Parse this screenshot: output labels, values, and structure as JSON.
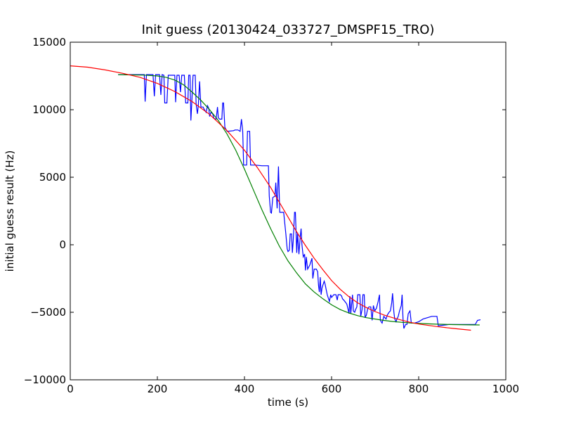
{
  "chart_data": {
    "type": "line",
    "title": "Init guess (20130424_033727_DMSPF15_TRO)",
    "xlabel": "time (s)",
    "ylabel": "initial guess result (Hz)",
    "xlim": [
      0,
      1000
    ],
    "ylim": [
      -10000,
      15000
    ],
    "x_ticks": [
      0,
      200,
      400,
      600,
      800,
      1000
    ],
    "y_ticks": [
      -10000,
      -5000,
      0,
      5000,
      10000,
      15000
    ],
    "grid": false,
    "legend": "none",
    "series": [
      {
        "color": "#0000ff",
        "points": [
          [
            110,
            12600
          ],
          [
            170,
            12600
          ],
          [
            172,
            10600
          ],
          [
            175,
            12600
          ],
          [
            190,
            12600
          ],
          [
            193,
            11000
          ],
          [
            196,
            12600
          ],
          [
            205,
            12600
          ],
          [
            208,
            11100
          ],
          [
            211,
            12600
          ],
          [
            215,
            12550
          ],
          [
            217,
            10500
          ],
          [
            222,
            10500
          ],
          [
            225,
            12550
          ],
          [
            240,
            12550
          ],
          [
            242,
            10550
          ],
          [
            245,
            12550
          ],
          [
            250,
            12550
          ],
          [
            253,
            11300
          ],
          [
            256,
            12550
          ],
          [
            262,
            12550
          ],
          [
            265,
            10500
          ],
          [
            270,
            10500
          ],
          [
            272,
            12550
          ],
          [
            275,
            12550
          ],
          [
            277,
            9200
          ],
          [
            279,
            10500
          ],
          [
            282,
            12550
          ],
          [
            287,
            12550
          ],
          [
            289,
            10400
          ],
          [
            292,
            9700
          ],
          [
            294,
            10300
          ],
          [
            297,
            12100
          ],
          [
            300,
            10200
          ],
          [
            305,
            10200
          ],
          [
            308,
            10000
          ],
          [
            312,
            9800
          ],
          [
            315,
            10300
          ],
          [
            318,
            10100
          ],
          [
            320,
            9500
          ],
          [
            323,
            9800
          ],
          [
            327,
            9700
          ],
          [
            330,
            9350
          ],
          [
            335,
            9300
          ],
          [
            338,
            10200
          ],
          [
            340,
            9400
          ],
          [
            343,
            9300
          ],
          [
            348,
            9300
          ],
          [
            350,
            10500
          ],
          [
            352,
            10500
          ],
          [
            355,
            8700
          ],
          [
            360,
            8400
          ],
          [
            375,
            8450
          ],
          [
            378,
            8500
          ],
          [
            385,
            8500
          ],
          [
            390,
            8400
          ],
          [
            393,
            9300
          ],
          [
            396,
            8400
          ],
          [
            398,
            5900
          ],
          [
            405,
            5900
          ],
          [
            407,
            8400
          ],
          [
            412,
            8400
          ],
          [
            414,
            5900
          ],
          [
            420,
            5900
          ],
          [
            424,
            5900
          ],
          [
            440,
            5850
          ],
          [
            455,
            5850
          ],
          [
            457,
            3600
          ],
          [
            460,
            2400
          ],
          [
            462,
            2350
          ],
          [
            465,
            3500
          ],
          [
            470,
            3600
          ],
          [
            472,
            4600
          ],
          [
            475,
            2700
          ],
          [
            478,
            5800
          ],
          [
            481,
            2400
          ],
          [
            490,
            2400
          ],
          [
            495,
            800
          ],
          [
            498,
            -300
          ],
          [
            500,
            -500
          ],
          [
            503,
            -400
          ],
          [
            505,
            800
          ],
          [
            508,
            800
          ],
          [
            510,
            -600
          ],
          [
            512,
            300
          ],
          [
            515,
            2400
          ],
          [
            517,
            2400
          ],
          [
            520,
            -600
          ],
          [
            522,
            900
          ],
          [
            525,
            -700
          ],
          [
            528,
            600
          ],
          [
            530,
            1200
          ],
          [
            532,
            0
          ],
          [
            535,
            -900
          ],
          [
            538,
            -700
          ],
          [
            540,
            -1900
          ],
          [
            542,
            -900
          ],
          [
            545,
            -1800
          ],
          [
            550,
            -1500
          ],
          [
            555,
            -1000
          ],
          [
            557,
            -2500
          ],
          [
            560,
            -1800
          ],
          [
            565,
            -1800
          ],
          [
            568,
            -2000
          ],
          [
            570,
            -3000
          ],
          [
            572,
            -3500
          ],
          [
            574,
            -2400
          ],
          [
            576,
            -3700
          ],
          [
            578,
            -3200
          ],
          [
            580,
            -3000
          ],
          [
            583,
            -2700
          ],
          [
            585,
            -2900
          ],
          [
            590,
            -3700
          ],
          [
            595,
            -4200
          ],
          [
            598,
            -3700
          ],
          [
            600,
            -3900
          ],
          [
            605,
            -3700
          ],
          [
            610,
            -3700
          ],
          [
            613,
            -4100
          ],
          [
            615,
            -3700
          ],
          [
            620,
            -3700
          ],
          [
            623,
            -3800
          ],
          [
            625,
            -4000
          ],
          [
            628,
            -4100
          ],
          [
            633,
            -4300
          ],
          [
            635,
            -4400
          ],
          [
            638,
            -4800
          ],
          [
            640,
            -5100
          ],
          [
            642,
            -3800
          ],
          [
            644,
            -5100
          ],
          [
            648,
            -3700
          ],
          [
            650,
            -4900
          ],
          [
            653,
            -5000
          ],
          [
            655,
            -4800
          ],
          [
            658,
            -4600
          ],
          [
            660,
            -3700
          ],
          [
            665,
            -3700
          ],
          [
            667,
            -5300
          ],
          [
            670,
            -4800
          ],
          [
            672,
            -3700
          ],
          [
            675,
            -3700
          ],
          [
            677,
            -5400
          ],
          [
            680,
            -5200
          ],
          [
            683,
            -4700
          ],
          [
            686,
            -4600
          ],
          [
            690,
            -4600
          ],
          [
            693,
            -5600
          ],
          [
            696,
            -4500
          ],
          [
            699,
            -4900
          ],
          [
            703,
            -4700
          ],
          [
            707,
            -4200
          ],
          [
            710,
            -3700
          ],
          [
            712,
            -5600
          ],
          [
            716,
            -5800
          ],
          [
            720,
            -5300
          ],
          [
            725,
            -5500
          ],
          [
            728,
            -5200
          ],
          [
            732,
            -5000
          ],
          [
            735,
            -4900
          ],
          [
            738,
            -4300
          ],
          [
            740,
            -3600
          ],
          [
            743,
            -5000
          ],
          [
            745,
            -5500
          ],
          [
            748,
            -5700
          ],
          [
            750,
            -5500
          ],
          [
            753,
            -5300
          ],
          [
            756,
            -4900
          ],
          [
            760,
            -4500
          ],
          [
            762,
            -3700
          ],
          [
            764,
            -5500
          ],
          [
            766,
            -6200
          ],
          [
            770,
            -5900
          ],
          [
            773,
            -5900
          ],
          [
            776,
            -5100
          ],
          [
            780,
            -4900
          ],
          [
            783,
            -5800
          ],
          [
            790,
            -5800
          ],
          [
            800,
            -5700
          ],
          [
            805,
            -5600
          ],
          [
            810,
            -5500
          ],
          [
            820,
            -5400
          ],
          [
            830,
            -5300
          ],
          [
            842,
            -5300
          ],
          [
            845,
            -6000
          ],
          [
            870,
            -5900
          ],
          [
            900,
            -5900
          ],
          [
            930,
            -5900
          ],
          [
            935,
            -5600
          ],
          [
            942,
            -5550
          ]
        ]
      },
      {
        "color": "#008000",
        "points": [
          [
            110,
            12600
          ],
          [
            140,
            12580
          ],
          [
            170,
            12560
          ],
          [
            200,
            12500
          ],
          [
            220,
            12400
          ],
          [
            240,
            12200
          ],
          [
            260,
            11850
          ],
          [
            280,
            11300
          ],
          [
            300,
            10700
          ],
          [
            320,
            10000
          ],
          [
            340,
            9200
          ],
          [
            360,
            8200
          ],
          [
            380,
            7000
          ],
          [
            400,
            5600
          ],
          [
            420,
            4100
          ],
          [
            440,
            2600
          ],
          [
            460,
            1200
          ],
          [
            480,
            -100
          ],
          [
            500,
            -1200
          ],
          [
            520,
            -2100
          ],
          [
            540,
            -2900
          ],
          [
            560,
            -3500
          ],
          [
            580,
            -4000
          ],
          [
            600,
            -4450
          ],
          [
            620,
            -4800
          ],
          [
            640,
            -5050
          ],
          [
            660,
            -5250
          ],
          [
            680,
            -5400
          ],
          [
            700,
            -5500
          ],
          [
            720,
            -5600
          ],
          [
            740,
            -5680
          ],
          [
            760,
            -5740
          ],
          [
            780,
            -5790
          ],
          [
            800,
            -5830
          ],
          [
            840,
            -5880
          ],
          [
            880,
            -5910
          ],
          [
            920,
            -5930
          ],
          [
            940,
            -5940
          ]
        ]
      },
      {
        "color": "#ff0000",
        "points": [
          [
            0,
            13250
          ],
          [
            40,
            13150
          ],
          [
            80,
            12950
          ],
          [
            120,
            12700
          ],
          [
            160,
            12400
          ],
          [
            200,
            11950
          ],
          [
            240,
            11350
          ],
          [
            280,
            10600
          ],
          [
            320,
            9650
          ],
          [
            360,
            8450
          ],
          [
            400,
            7000
          ],
          [
            430,
            5700
          ],
          [
            460,
            4250
          ],
          [
            480,
            3150
          ],
          [
            500,
            2050
          ],
          [
            520,
            950
          ],
          [
            540,
            -50
          ],
          [
            560,
            -1000
          ],
          [
            580,
            -1850
          ],
          [
            600,
            -2650
          ],
          [
            620,
            -3300
          ],
          [
            640,
            -3850
          ],
          [
            660,
            -4300
          ],
          [
            680,
            -4650
          ],
          [
            700,
            -4950
          ],
          [
            720,
            -5200
          ],
          [
            740,
            -5400
          ],
          [
            760,
            -5580
          ],
          [
            780,
            -5740
          ],
          [
            800,
            -5870
          ],
          [
            840,
            -6050
          ],
          [
            880,
            -6200
          ],
          [
            920,
            -6330
          ]
        ]
      }
    ]
  }
}
